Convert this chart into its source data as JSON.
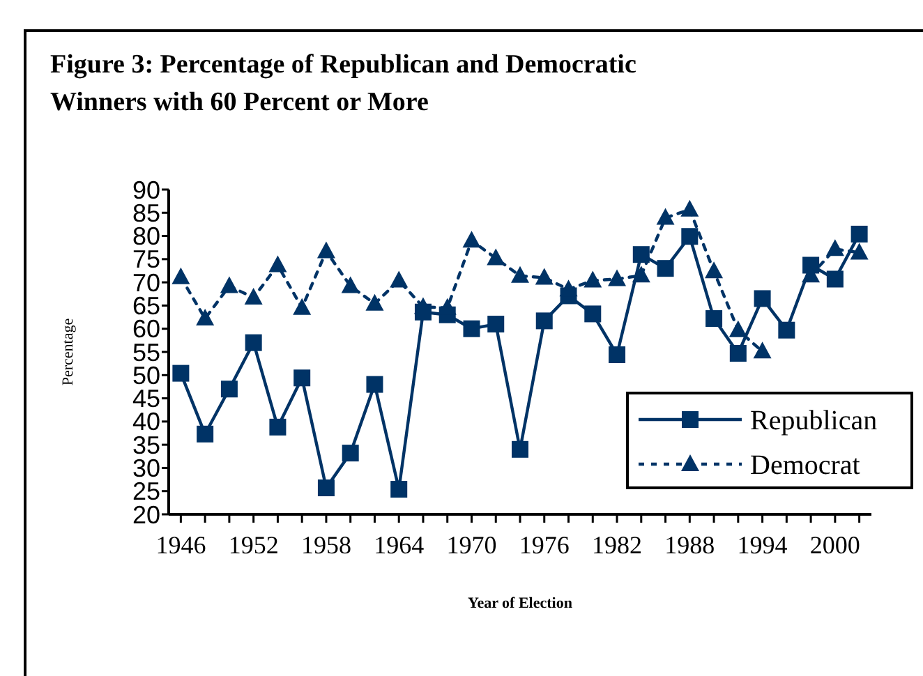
{
  "chart_data": {
    "type": "line",
    "title": "Figure 3:  Percentage of Republican and Democratic Winners with 60 Percent or More",
    "xlabel": "Year of Election",
    "ylabel": "Percentage",
    "categories": [
      "1946",
      null,
      null,
      "1952",
      null,
      null,
      "1958",
      null,
      null,
      "1964",
      null,
      null,
      "1970",
      null,
      null,
      "1976",
      null,
      null,
      "1982",
      null,
      null,
      "1988",
      null,
      null,
      "1994",
      null,
      null,
      "2000",
      null
    ],
    "series": [
      {
        "name": "Republican",
        "color": "#003366",
        "marker": "square",
        "line_style": "solid",
        "values": [
          50.4,
          37.3,
          47,
          57,
          38.8,
          49.4,
          25.7,
          33.2,
          48,
          25.4,
          63.6,
          63,
          60,
          61,
          34,
          61.7,
          67.1,
          63.2,
          54.4,
          76,
          73,
          79.9,
          62.2,
          54.7,
          66.5,
          59.7,
          73.7,
          70.7,
          80.4
        ]
      },
      {
        "name": "Democrat",
        "color": "#003366",
        "marker": "triangle",
        "line_style": "dotted",
        "values": [
          71.1,
          62.2,
          69.2,
          66.7,
          73.7,
          64.5,
          76.7,
          69.2,
          65.4,
          70.4,
          64.7,
          64.5,
          79,
          75.2,
          71.4,
          71,
          68.5,
          70.4,
          70.7,
          71.5,
          83.9,
          85.7,
          72.4,
          59.7,
          55.1,
          null,
          71.5,
          77.2,
          76.4
        ]
      }
    ],
    "ylim": [
      20,
      90
    ],
    "yticks": [
      20,
      25,
      30,
      35,
      40,
      45,
      50,
      55,
      60,
      65,
      70,
      75,
      80,
      85,
      90
    ],
    "grid": false,
    "legend": "right"
  }
}
